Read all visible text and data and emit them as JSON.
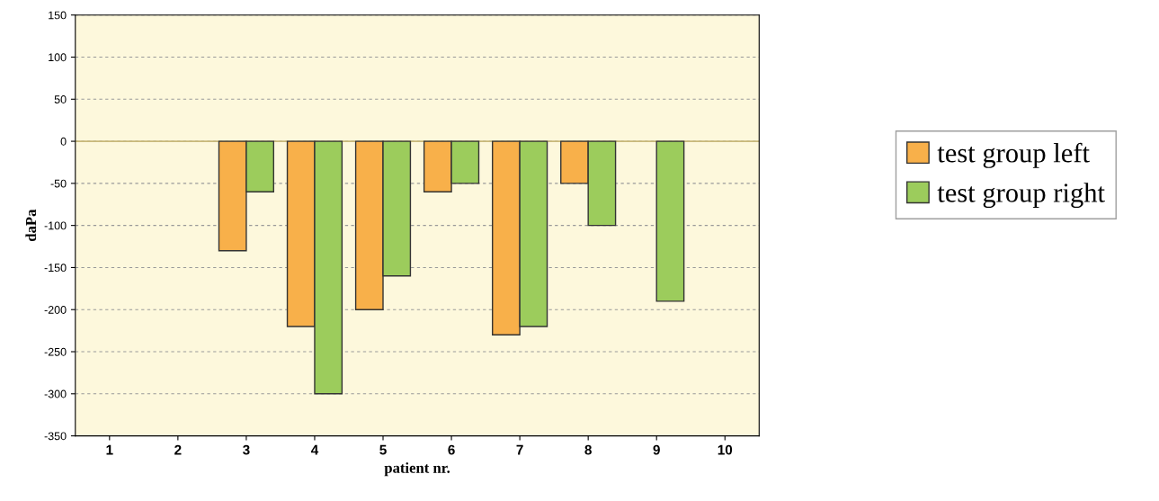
{
  "chart_data": {
    "type": "bar",
    "xlabel": "patient nr.",
    "ylabel": "daPa",
    "categories": [
      "1",
      "2",
      "3",
      "4",
      "5",
      "6",
      "7",
      "8",
      "9",
      "10"
    ],
    "series": [
      {
        "name": "test group left",
        "color": "#f8b04a",
        "values": [
          null,
          null,
          -130,
          -220,
          -200,
          -60,
          -230,
          -50,
          null,
          null
        ]
      },
      {
        "name": "test group right",
        "color": "#9ccc5c",
        "values": [
          null,
          null,
          -60,
          -300,
          -160,
          -50,
          -220,
          -100,
          -190,
          null
        ]
      }
    ],
    "ylim": [
      -350,
      150
    ],
    "yticks": [
      -350,
      -300,
      -250,
      -200,
      -150,
      -100,
      -50,
      0,
      50,
      100,
      150
    ],
    "ref_lines": [
      {
        "axis": "y",
        "value": 0,
        "color": "#c8b87a"
      }
    ],
    "grid": "y",
    "legend": "right"
  }
}
